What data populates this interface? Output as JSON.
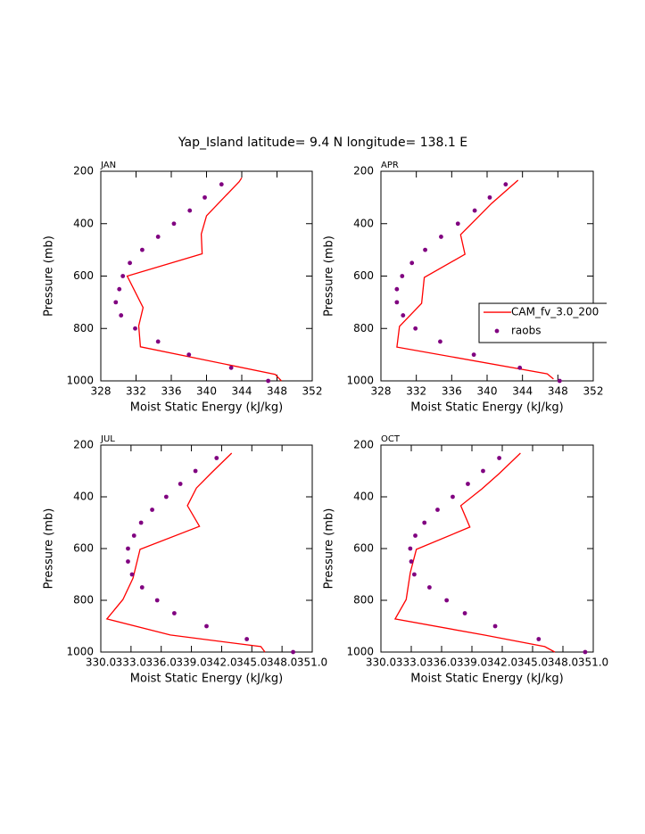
{
  "title": "Yap_Island  latitude= 9.4 N longitude= 138.1 E",
  "chart_data": [
    {
      "type": "line",
      "subtitle": "JAN",
      "xlabel": "Moist Static Energy (kJ/kg)",
      "ylabel": "Pressure (mb)",
      "xlim": [
        328,
        352
      ],
      "xticks": [
        328,
        332,
        336,
        340,
        344,
        348,
        352
      ],
      "ylim": [
        200,
        1000
      ],
      "yticks": [
        200,
        400,
        600,
        800,
        1000
      ],
      "y_reversed": true,
      "series": [
        {
          "style": "line",
          "color": "#ff0000",
          "pressure": [
            225,
            240,
            370,
            440,
            515,
            600,
            720,
            790,
            870,
            975,
            1000
          ],
          "values": [
            344.0,
            343.7,
            340.0,
            339.4,
            339.5,
            331.0,
            332.8,
            332.3,
            332.5,
            347.8,
            348.5
          ]
        },
        {
          "style": "markers",
          "color": "#800080",
          "pressure": [
            250,
            300,
            350,
            400,
            450,
            500,
            550,
            600,
            650,
            700,
            750,
            800,
            850,
            900,
            950,
            1000
          ],
          "values": [
            341.7,
            339.8,
            338.1,
            336.3,
            334.5,
            332.7,
            331.3,
            330.5,
            330.1,
            329.7,
            330.3,
            331.9,
            334.5,
            338.0,
            342.8,
            347.0
          ]
        }
      ]
    },
    {
      "type": "line",
      "subtitle": "APR",
      "xlabel": "Moist Static Energy (kJ/kg)",
      "ylabel": "Pressure (mb)",
      "xlim": [
        328,
        352
      ],
      "xticks": [
        328,
        332,
        336,
        340,
        344,
        348,
        352
      ],
      "ylim": [
        200,
        1000
      ],
      "yticks": [
        200,
        400,
        600,
        800,
        1000
      ],
      "y_reversed": true,
      "legend": "right",
      "series": [
        {
          "name": "CAM_fv_3.0_200",
          "style": "line",
          "color": "#ff0000",
          "pressure": [
            234,
            323,
            442,
            517,
            605,
            704,
            792,
            871,
            973,
            993
          ],
          "values": [
            343.5,
            340.5,
            337.0,
            337.5,
            332.9,
            332.6,
            330.1,
            329.8,
            346.8,
            347.5
          ]
        },
        {
          "name": "raobs",
          "style": "markers",
          "color": "#800080",
          "pressure": [
            250,
            300,
            350,
            400,
            450,
            500,
            550,
            600,
            650,
            700,
            750,
            800,
            850,
            900,
            950,
            1000
          ],
          "values": [
            342.1,
            340.3,
            338.6,
            336.7,
            334.8,
            333.0,
            331.5,
            330.4,
            329.8,
            329.8,
            330.5,
            331.9,
            334.7,
            338.5,
            343.7,
            348.2
          ]
        }
      ]
    },
    {
      "type": "line",
      "subtitle": "JUL",
      "xlabel": "Moist Static Energy (kJ/kg)",
      "ylabel": "Pressure (mb)",
      "xlim": [
        330,
        351
      ],
      "xticks": [
        {
          "value": 330,
          "label": "330.0"
        },
        {
          "value": 333,
          "label": "333.0"
        },
        {
          "value": 336,
          "label": "336.0"
        },
        {
          "value": 339,
          "label": "339.0"
        },
        {
          "value": 342,
          "label": "342.0"
        },
        {
          "value": 345,
          "label": "345.0"
        },
        {
          "value": 348,
          "label": "348.0"
        },
        {
          "value": 351,
          "label": "351.0"
        }
      ],
      "ylim": [
        200,
        1000
      ],
      "yticks": [
        200,
        400,
        600,
        800,
        1000
      ],
      "y_reversed": true,
      "series": [
        {
          "style": "line",
          "color": "#ff0000",
          "pressure": [
            231,
            307,
            366,
            434,
            514,
            603,
            714,
            797,
            872,
            934,
            979,
            1000
          ],
          "values": [
            343.0,
            341.0,
            339.5,
            338.6,
            339.8,
            333.9,
            333.2,
            332.2,
            330.6,
            336.9,
            345.9,
            346.3
          ]
        },
        {
          "style": "markers",
          "color": "#800080",
          "pressure": [
            250,
            300,
            350,
            400,
            450,
            500,
            550,
            600,
            650,
            700,
            750,
            800,
            850,
            900,
            950,
            1000
          ],
          "values": [
            341.5,
            339.4,
            337.9,
            336.5,
            335.1,
            334.0,
            333.3,
            332.7,
            332.7,
            333.1,
            334.1,
            335.6,
            337.3,
            340.5,
            344.5,
            349.1
          ]
        }
      ]
    },
    {
      "type": "line",
      "subtitle": "OCT",
      "xlabel": "Moist Static Energy (kJ/kg)",
      "ylabel": "Pressure (mb)",
      "xlim": [
        330,
        351
      ],
      "xticks": [
        {
          "value": 330,
          "label": "330.0"
        },
        {
          "value": 333,
          "label": "333.0"
        },
        {
          "value": 336,
          "label": "336.0"
        },
        {
          "value": 339,
          "label": "339.0"
        },
        {
          "value": 342,
          "label": "342.0"
        },
        {
          "value": 345,
          "label": "345.0"
        },
        {
          "value": 348,
          "label": "348.0"
        },
        {
          "value": 351,
          "label": "351.0"
        }
      ],
      "ylim": [
        200,
        1000
      ],
      "yticks": [
        200,
        400,
        600,
        800,
        1000
      ],
      "y_reversed": true,
      "series": [
        {
          "style": "line",
          "color": "#ff0000",
          "pressure": [
            231,
            310,
            369,
            434,
            517,
            603,
            693,
            797,
            872,
            934,
            979,
            1000
          ],
          "values": [
            343.8,
            341.7,
            340.0,
            337.9,
            338.8,
            333.5,
            332.9,
            332.5,
            331.4,
            340.2,
            346.2,
            347.2
          ]
        },
        {
          "style": "markers",
          "color": "#800080",
          "pressure": [
            250,
            300,
            350,
            400,
            450,
            500,
            550,
            600,
            650,
            700,
            750,
            800,
            850,
            900,
            950,
            1000
          ],
          "values": [
            341.7,
            340.1,
            338.6,
            337.1,
            335.6,
            334.3,
            333.4,
            332.9,
            333.0,
            333.3,
            334.8,
            336.5,
            338.3,
            341.3,
            345.6,
            350.2
          ]
        }
      ]
    }
  ]
}
